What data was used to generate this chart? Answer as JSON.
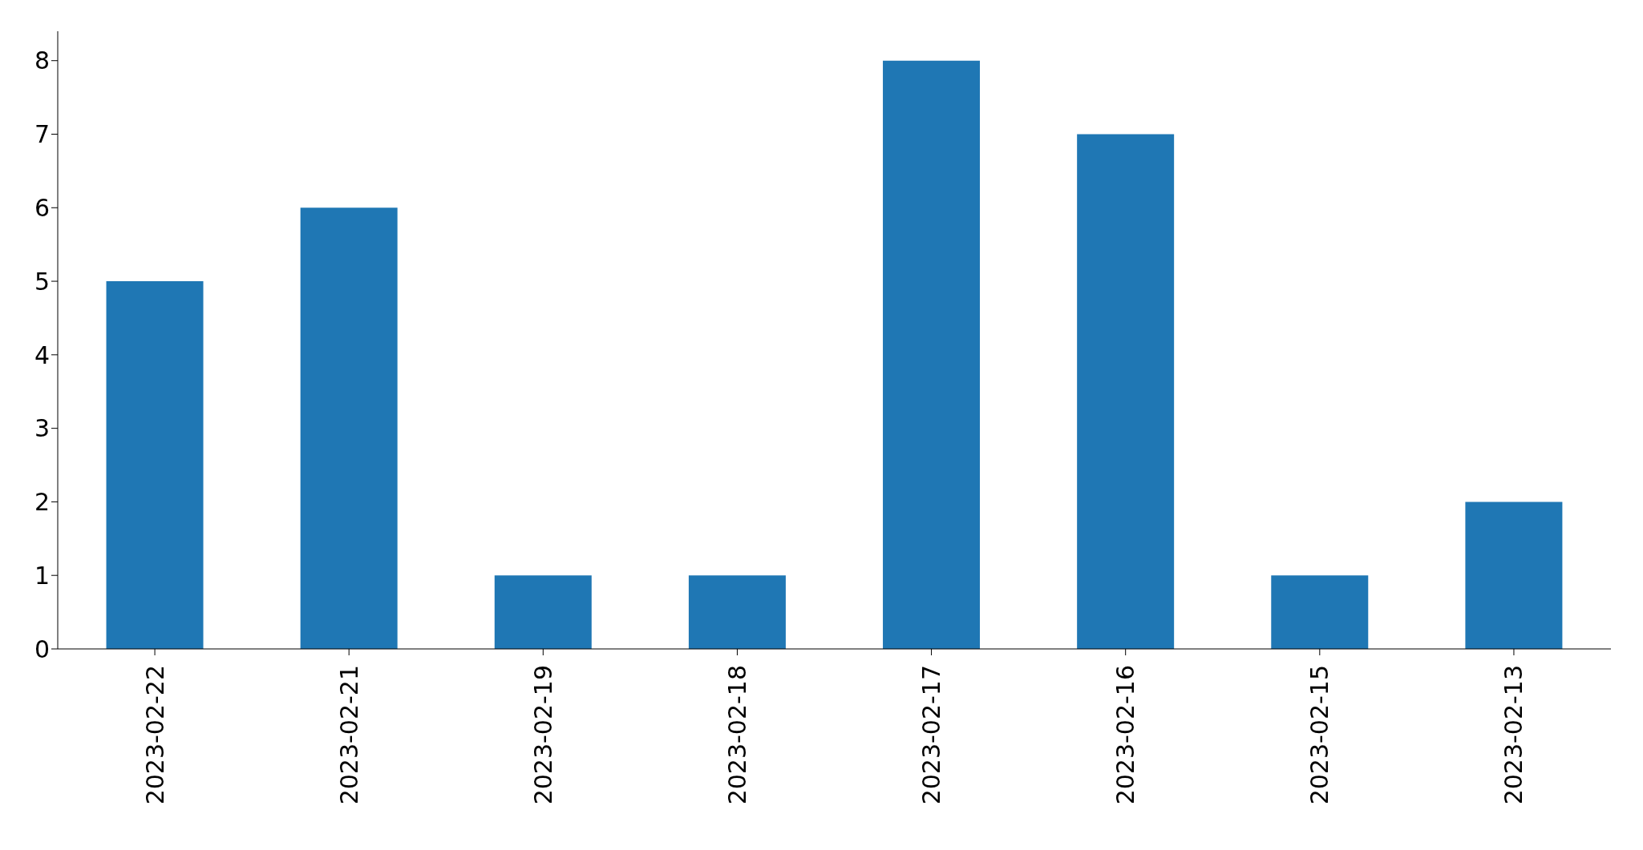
{
  "chart_data": {
    "type": "bar",
    "categories": [
      "2023-02-22",
      "2023-02-21",
      "2023-02-19",
      "2023-02-18",
      "2023-02-17",
      "2023-02-16",
      "2023-02-15",
      "2023-02-13"
    ],
    "values": [
      5,
      6,
      1,
      1,
      8,
      7,
      1,
      2
    ],
    "color": "#1f77b4",
    "ylim": [
      0,
      8.4
    ],
    "yticks": [
      0,
      1,
      2,
      3,
      4,
      5,
      6,
      7,
      8
    ],
    "grid": false,
    "legend": false
  }
}
